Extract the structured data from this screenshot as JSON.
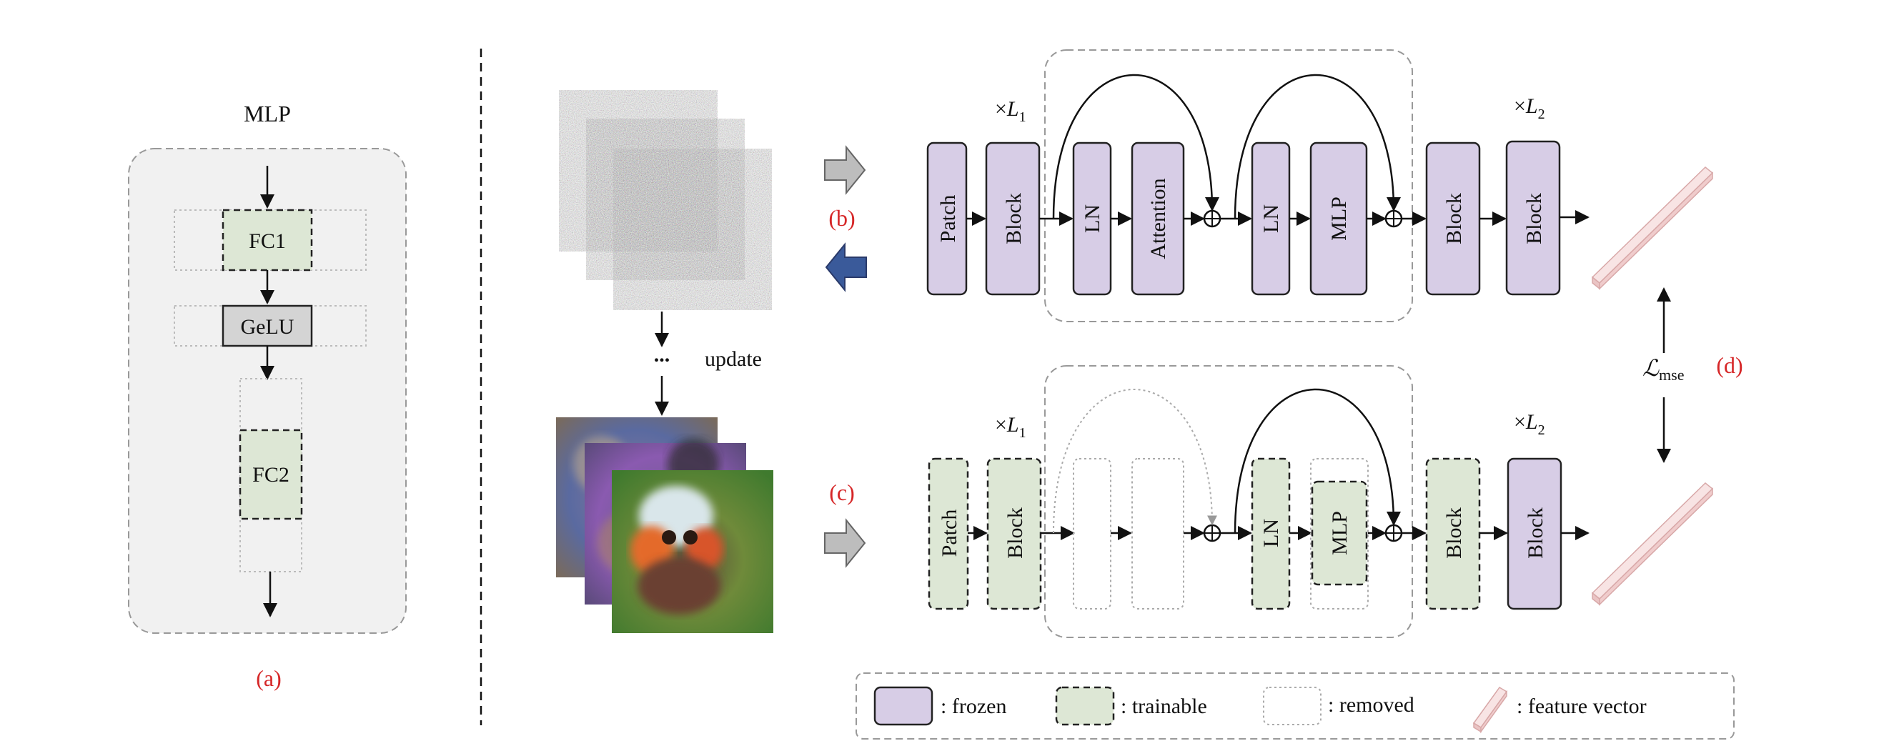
{
  "panel_a": {
    "title": "MLP",
    "fc1": "FC1",
    "gelu": "GeLU",
    "fc2": "FC2",
    "caption": "(a)"
  },
  "middle": {
    "update": "update",
    "ellipsis": "...",
    "label_b": "(b)",
    "label_c": "(c)"
  },
  "top_row": {
    "l1_prefix": "×",
    "l1_var": "L",
    "l1_sub": "1",
    "l2_prefix": "×",
    "l2_var": "L",
    "l2_sub": "2",
    "patch": "Patch",
    "block1": "Block",
    "ln1": "LN",
    "attention": "Attention",
    "ln2": "LN",
    "mlp": "MLP",
    "block2": "Block",
    "block3": "Block"
  },
  "bottom_row": {
    "l1_prefix": "×",
    "l1_var": "L",
    "l1_sub": "1",
    "l2_prefix": "×",
    "l2_var": "L",
    "l2_sub": "2",
    "patch": "Patch",
    "block1": "Block",
    "ln2": "LN",
    "mlp": "MLP",
    "block2": "Block",
    "block3": "Block"
  },
  "loss": {
    "symbol": "ℒ",
    "sub": "mse",
    "label_d": "(d)"
  },
  "legend": {
    "frozen": ": frozen",
    "trainable": ": trainable",
    "removed": ": removed",
    "feature": ": feature vector"
  },
  "colors": {
    "frozen": "#d7cde6",
    "trainable": "#dde7d5",
    "annotation_red": "#d62728",
    "backward_arrow": "#3a5a9a",
    "forward_arrow": "#bdbdbd",
    "feature_vector": "#f3d6d6"
  }
}
